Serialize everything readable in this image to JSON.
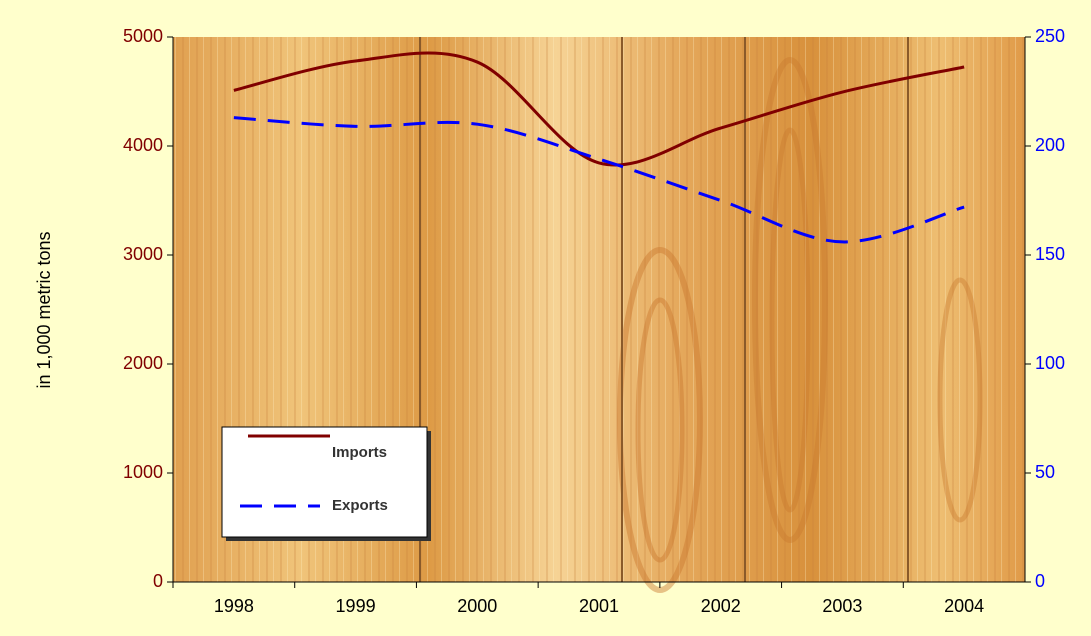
{
  "chart_data": {
    "type": "line",
    "y_label": "in 1,000 metric tons",
    "categories": [
      "1998",
      "1999",
      "2000",
      "2001",
      "2002",
      "2003",
      "2004"
    ],
    "series": [
      {
        "name": "Imports",
        "color": "#800000",
        "values": [
          4510,
          4780,
          4770,
          3845,
          4165,
          4495,
          4725
        ]
      },
      {
        "name": "Exports",
        "color": "#0000ff",
        "axis": "y2",
        "values": [
          213,
          209,
          210,
          194,
          175,
          156,
          172
        ]
      }
    ],
    "ylim": [
      0,
      5000
    ],
    "yticks": [
      0,
      1000,
      2000,
      3000,
      4000,
      5000
    ],
    "y2lim": [
      0,
      250
    ],
    "y2ticks": [
      0,
      50,
      100,
      150,
      200,
      250
    ],
    "y_color": "#800000",
    "y2_color": "#0000ff"
  }
}
